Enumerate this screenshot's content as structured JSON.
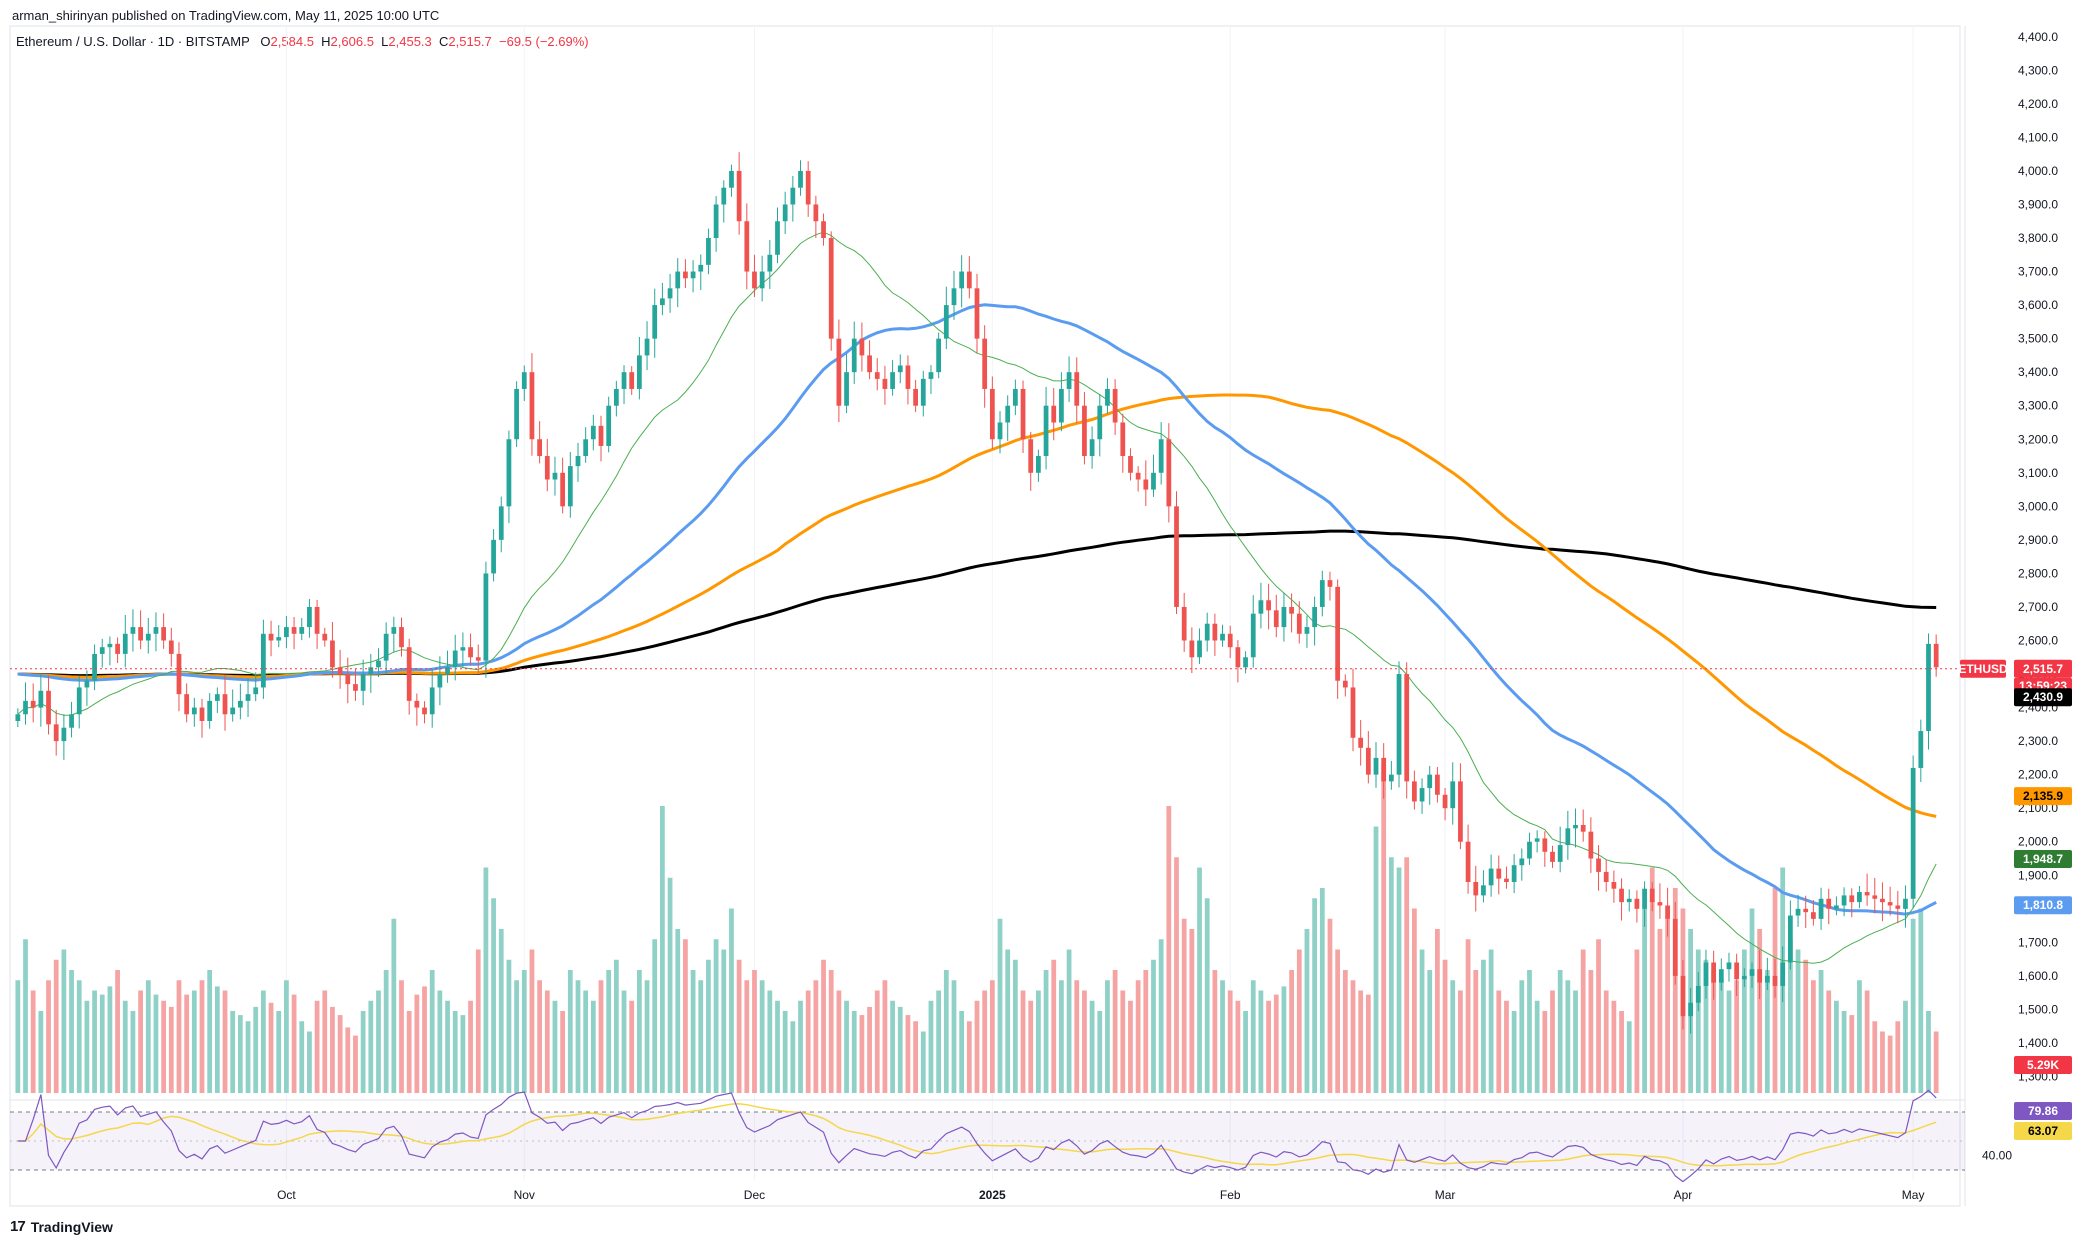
{
  "header": {
    "publisher": "arman_shirinyan published on TradingView.com, May 11, 2025 10:00 UTC",
    "symbol": "Ethereum / U.S. Dollar · 1D · BITSTAMP",
    "o_label": "O",
    "o_value": "2,584.5",
    "h_label": "H",
    "h_value": "2,606.5",
    "l_label": "L",
    "l_value": "2,455.3",
    "c_label": "C",
    "c_value": "2,515.7",
    "change": "−69.5 (−2.69%)"
  },
  "branding": {
    "logo_text": "TradingView",
    "logo_mark": "17"
  },
  "colors": {
    "up": "#26a69a",
    "down": "#ef5350",
    "vol_up": "#8fd1c7",
    "vol_down": "#f5a3a3",
    "ma_black": "#000000",
    "ma_orange": "#ff9800",
    "ma_blue": "#5b9cf0",
    "ma_green": "#4caf50",
    "rsi_line": "#7e57c2",
    "rsi_ma": "#f5d74a",
    "price_line": "#f23645"
  },
  "chart_data": {
    "type": "candlestick",
    "symbol": "ETHUSD",
    "timeframe": "1D",
    "x_ticks": [
      "Oct",
      "Nov",
      "Dec",
      "2025",
      "Feb",
      "Mar",
      "Apr",
      "May"
    ],
    "y_ticks": [
      "4,400.0",
      "4,300.0",
      "4,200.0",
      "4,100.0",
      "4,000.0",
      "3,900.0",
      "3,800.0",
      "3,700.0",
      "3,600.0",
      "3,500.0",
      "3,400.0",
      "3,300.0",
      "3,200.0",
      "3,100.0",
      "3,000.0",
      "2,900.0",
      "2,800.0",
      "2,700.0",
      "2,600.0",
      "2,500.0",
      "2,400.0",
      "2,300.0",
      "2,200.0",
      "2,100.0",
      "2,000.0",
      "1,900.0",
      "1,800.0",
      "1,700.0",
      "1,600.0",
      "1,500.0",
      "1,400.0",
      "1,300.0"
    ],
    "ylim": [
      1230,
      4450
    ],
    "closes": [
      2380,
      2420,
      2400,
      2450,
      2350,
      2300,
      2340,
      2380,
      2460,
      2480,
      2560,
      2580,
      2590,
      2560,
      2620,
      2640,
      2600,
      2620,
      2640,
      2600,
      2560,
      2440,
      2380,
      2400,
      2360,
      2420,
      2440,
      2380,
      2400,
      2420,
      2440,
      2460,
      2620,
      2600,
      2610,
      2640,
      2620,
      2640,
      2700,
      2620,
      2600,
      2520,
      2500,
      2470,
      2450,
      2500,
      2520,
      2540,
      2620,
      2640,
      2580,
      2420,
      2400,
      2380,
      2460,
      2500,
      2520,
      2570,
      2580,
      2550,
      2540,
      2800,
      2900,
      3000,
      3200,
      3350,
      3400,
      3200,
      3150,
      3080,
      3100,
      3000,
      3120,
      3150,
      3200,
      3240,
      3180,
      3300,
      3350,
      3400,
      3350,
      3450,
      3500,
      3600,
      3620,
      3650,
      3700,
      3680,
      3700,
      3720,
      3800,
      3900,
      3950,
      4000,
      3850,
      3700,
      3650,
      3700,
      3750,
      3850,
      3900,
      3950,
      4000,
      3900,
      3850,
      3800,
      3500,
      3300,
      3400,
      3500,
      3450,
      3400,
      3380,
      3350,
      3400,
      3420,
      3350,
      3300,
      3380,
      3400,
      3500,
      3600,
      3650,
      3700,
      3650,
      3500,
      3350,
      3200,
      3250,
      3300,
      3350,
      3200,
      3100,
      3150,
      3300,
      3250,
      3350,
      3400,
      3300,
      3150,
      3200,
      3300,
      3350,
      3250,
      3150,
      3100,
      3080,
      3050,
      3100,
      3200,
      3000,
      2700,
      2600,
      2550,
      2600,
      2650,
      2600,
      2620,
      2580,
      2520,
      2550,
      2680,
      2720,
      2690,
      2640,
      2700,
      2680,
      2620,
      2640,
      2700,
      2780,
      2760,
      2480,
      2460,
      2310,
      2280,
      2200,
      2250,
      2180,
      2200,
      2500,
      2180,
      2120,
      2160,
      2200,
      2140,
      2100,
      2180,
      2000,
      1880,
      1840,
      1870,
      1920,
      1890,
      1880,
      1930,
      1950,
      2000,
      2010,
      1970,
      1940,
      1990,
      2040,
      2050,
      2030,
      1950,
      1910,
      1880,
      1860,
      1820,
      1830,
      1800,
      1860,
      1820,
      1810,
      1770,
      1600,
      1480,
      1520,
      1570,
      1640,
      1580,
      1620,
      1640,
      1590,
      1600,
      1620,
      1580,
      1600,
      1570,
      1640,
      1780,
      1800,
      1790,
      1770,
      1830,
      1800,
      1810,
      1840,
      1820,
      1850,
      1840,
      1830,
      1820,
      1810,
      1800,
      1830,
      2220,
      2330,
      2590,
      2520
    ],
    "volumes": [
      55,
      75,
      50,
      40,
      55,
      65,
      70,
      60,
      55,
      45,
      50,
      48,
      52,
      60,
      45,
      40,
      50,
      55,
      48,
      45,
      42,
      55,
      48,
      50,
      55,
      60,
      52,
      50,
      40,
      38,
      35,
      42,
      50,
      44,
      40,
      55,
      48,
      35,
      30,
      45,
      50,
      42,
      38,
      32,
      28,
      40,
      45,
      50,
      60,
      85,
      55,
      40,
      48,
      52,
      60,
      50,
      45,
      40,
      38,
      45,
      70,
      110,
      95,
      80,
      65,
      55,
      60,
      70,
      55,
      50,
      45,
      40,
      60,
      55,
      50,
      45,
      55,
      60,
      65,
      50,
      45,
      60,
      55,
      75,
      140,
      105,
      80,
      75,
      60,
      55,
      65,
      75,
      70,
      90,
      65,
      55,
      60,
      55,
      50,
      45,
      40,
      35,
      45,
      50,
      55,
      65,
      60,
      50,
      45,
      40,
      38,
      42,
      50,
      55,
      45,
      42,
      38,
      35,
      30,
      45,
      50,
      60,
      55,
      40,
      35,
      45,
      50,
      55,
      85,
      70,
      65,
      50,
      45,
      50,
      60,
      65,
      55,
      70,
      55,
      50,
      45,
      40,
      55,
      60,
      50,
      45,
      55,
      60,
      65,
      75,
      140,
      115,
      85,
      80,
      110,
      95,
      60,
      55,
      50,
      45,
      40,
      55,
      50,
      45,
      48,
      52,
      60,
      70,
      80,
      95,
      100,
      85,
      70,
      60,
      55,
      50,
      48,
      130,
      160,
      115,
      110,
      115,
      90,
      70,
      60,
      80,
      65,
      55,
      50,
      75,
      60,
      65,
      70,
      50,
      45,
      40,
      55,
      60,
      45,
      40,
      50,
      60,
      55,
      50,
      70,
      60,
      75,
      50,
      45,
      40,
      35,
      70,
      90,
      110,
      80,
      85,
      100,
      90,
      80,
      70,
      65,
      60,
      55,
      50,
      55,
      70,
      90,
      80,
      60,
      100,
      110,
      75,
      70,
      65,
      55,
      60,
      50,
      45,
      40,
      38,
      55,
      50,
      35,
      30,
      28,
      35,
      45,
      85,
      90,
      40,
      30,
      25
    ],
    "ma_black_last": 2430.9,
    "ma_orange_last": 2135.9,
    "ma_green_last": 1948.7,
    "ma_blue_last": 1810.8,
    "last_price": 2515.7,
    "rsi": {
      "ticks": [
        "40.00"
      ],
      "value": 79.86,
      "ma_value": 63.07,
      "upper": 70,
      "lower": 30
    }
  },
  "labels": {
    "last_symbol": "ETHUSD",
    "last_price": "2,515.7",
    "countdown": "13:59:23",
    "ma_black": "2,430.9",
    "ma_orange": "2,135.9",
    "ma_green": "1,948.7",
    "ma_blue": "1,810.8",
    "volume": "5.29K",
    "rsi": "79.86",
    "rsi_ma": "63.07"
  }
}
